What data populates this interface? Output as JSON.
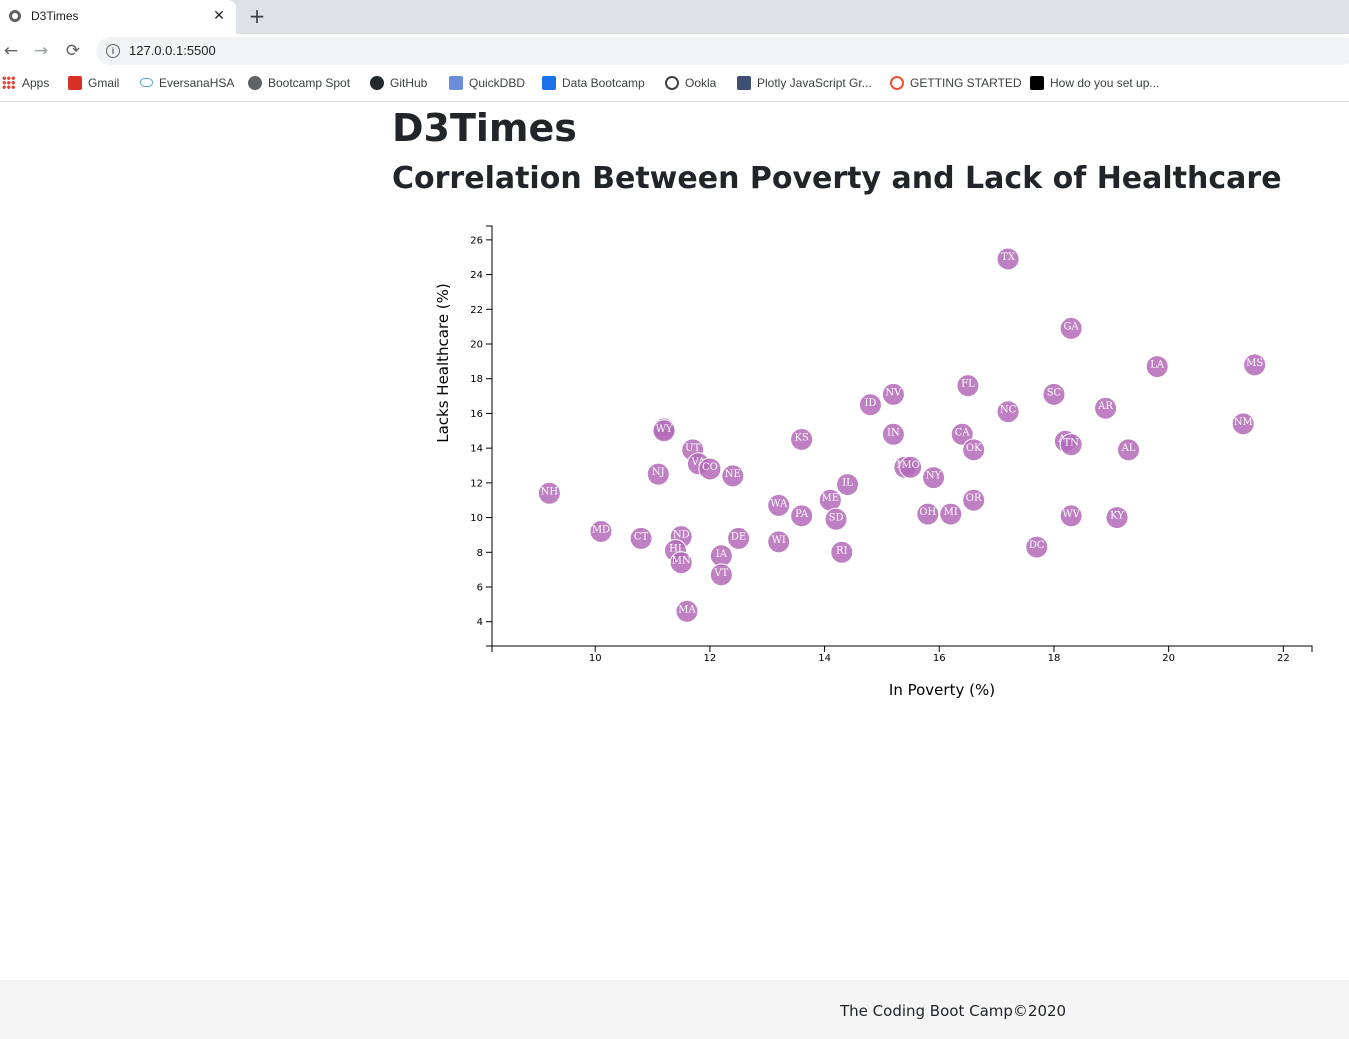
{
  "browser": {
    "tab_title": "D3Times",
    "tab_close": "✕",
    "new_tab": "+",
    "back": "←",
    "forward": "→",
    "reload": "⟳",
    "url": "127.0.0.1:5500",
    "bookmarks": [
      {
        "label": "Apps",
        "icon": "apps-grid-icon",
        "color": "#ea4335"
      },
      {
        "label": "Gmail",
        "icon": "gmail-icon",
        "color": "#d93025"
      },
      {
        "label": "EversanaHSA",
        "icon": "cloud-icon",
        "color": "#4fa3e0"
      },
      {
        "label": "Bootcamp Spot",
        "icon": "globe-icon",
        "color": "#5f6368"
      },
      {
        "label": "GitHub",
        "icon": "github-icon",
        "color": "#24292e"
      },
      {
        "label": "QuickDBD",
        "icon": "lightning-icon",
        "color": "#6b8cd9"
      },
      {
        "label": "Data Bootcamp",
        "icon": "graduation-cap-icon",
        "color": "#1a73e8"
      },
      {
        "label": "Ookla",
        "icon": "speedometer-icon",
        "color": "#3c4043"
      },
      {
        "label": "Plotly JavaScript Gr...",
        "icon": "plotly-icon",
        "color": "#3f4f75"
      },
      {
        "label": "GETTING STARTED",
        "icon": "getting-started-icon",
        "color": "#f05133"
      },
      {
        "label": "How do you set up...",
        "icon": "stack-icon",
        "color": "#000000"
      }
    ]
  },
  "page": {
    "title": "D3Times",
    "subtitle": "Correlation Between Poverty and Lack of Healthcare",
    "footer": "The Coding Boot Camp©2020"
  },
  "chart_data": {
    "type": "scatter",
    "title": "Correlation Between Poverty and Lack of Healthcare",
    "xlabel": "In Poverty (%)",
    "ylabel": "Lacks Healthcare (%)",
    "xlim": [
      8.2,
      22.5
    ],
    "ylim": [
      2.6,
      26.8
    ],
    "xticks": [
      10,
      12,
      14,
      16,
      18,
      20,
      22
    ],
    "yticks": [
      4,
      6,
      8,
      10,
      12,
      14,
      16,
      18,
      20,
      22,
      24,
      26
    ],
    "grid": false,
    "marker_color": "#b36ab8",
    "points": [
      {
        "label": "TX",
        "x": 17.2,
        "y": 24.9
      },
      {
        "label": "GA",
        "x": 18.3,
        "y": 20.9
      },
      {
        "label": "LA",
        "x": 19.8,
        "y": 18.7
      },
      {
        "label": "MS",
        "x": 21.5,
        "y": 18.8
      },
      {
        "label": "FL",
        "x": 16.5,
        "y": 17.6
      },
      {
        "label": "SC",
        "x": 18.0,
        "y": 17.1
      },
      {
        "label": "NV",
        "x": 15.2,
        "y": 17.1
      },
      {
        "label": "ID",
        "x": 14.8,
        "y": 16.5
      },
      {
        "label": "AR",
        "x": 18.9,
        "y": 16.3
      },
      {
        "label": "NC",
        "x": 17.2,
        "y": 16.1
      },
      {
        "label": "NM",
        "x": 21.3,
        "y": 15.4
      },
      {
        "label": "IN",
        "x": 15.2,
        "y": 14.8
      },
      {
        "label": "CA",
        "x": 16.4,
        "y": 14.8
      },
      {
        "label": "AK",
        "x": 11.2,
        "y": 15.1
      },
      {
        "label": "WY",
        "x": 11.2,
        "y": 15.0
      },
      {
        "label": "KS",
        "x": 13.6,
        "y": 14.5
      },
      {
        "label": "AZ",
        "x": 18.2,
        "y": 14.4
      },
      {
        "label": "TN",
        "x": 18.3,
        "y": 14.2
      },
      {
        "label": "UT",
        "x": 11.7,
        "y": 13.9
      },
      {
        "label": "AL",
        "x": 19.3,
        "y": 13.9
      },
      {
        "label": "OK",
        "x": 16.6,
        "y": 13.9
      },
      {
        "label": "VA",
        "x": 11.8,
        "y": 13.1
      },
      {
        "label": "CO",
        "x": 12.0,
        "y": 12.8
      },
      {
        "label": "MT",
        "x": 15.4,
        "y": 12.9
      },
      {
        "label": "MO",
        "x": 15.5,
        "y": 12.9
      },
      {
        "label": "NJ",
        "x": 11.1,
        "y": 12.5
      },
      {
        "label": "NE",
        "x": 12.4,
        "y": 12.4
      },
      {
        "label": "NY",
        "x": 15.9,
        "y": 12.3
      },
      {
        "label": "IL",
        "x": 14.4,
        "y": 11.9
      },
      {
        "label": "NH",
        "x": 9.2,
        "y": 11.4
      },
      {
        "label": "ME",
        "x": 14.1,
        "y": 11.0
      },
      {
        "label": "OR",
        "x": 16.6,
        "y": 11.0
      },
      {
        "label": "WA",
        "x": 13.2,
        "y": 10.7
      },
      {
        "label": "OH",
        "x": 15.8,
        "y": 10.2
      },
      {
        "label": "MI",
        "x": 16.2,
        "y": 10.2
      },
      {
        "label": "PA",
        "x": 13.6,
        "y": 10.1
      },
      {
        "label": "WV",
        "x": 18.3,
        "y": 10.1
      },
      {
        "label": "KY",
        "x": 19.1,
        "y": 10.0
      },
      {
        "label": "SD",
        "x": 14.2,
        "y": 9.9
      },
      {
        "label": "MD",
        "x": 10.1,
        "y": 9.2
      },
      {
        "label": "CT",
        "x": 10.8,
        "y": 8.8
      },
      {
        "label": "ND",
        "x": 11.5,
        "y": 8.9
      },
      {
        "label": "DE",
        "x": 12.5,
        "y": 8.8
      },
      {
        "label": "WI",
        "x": 13.2,
        "y": 8.6
      },
      {
        "label": "DC",
        "x": 17.7,
        "y": 8.3
      },
      {
        "label": "HI",
        "x": 11.4,
        "y": 8.1
      },
      {
        "label": "RI",
        "x": 14.3,
        "y": 8.0
      },
      {
        "label": "IA",
        "x": 12.2,
        "y": 7.8
      },
      {
        "label": "MN",
        "x": 11.5,
        "y": 7.4
      },
      {
        "label": "VT",
        "x": 12.2,
        "y": 6.7
      },
      {
        "label": "MA",
        "x": 11.6,
        "y": 4.6
      }
    ]
  }
}
